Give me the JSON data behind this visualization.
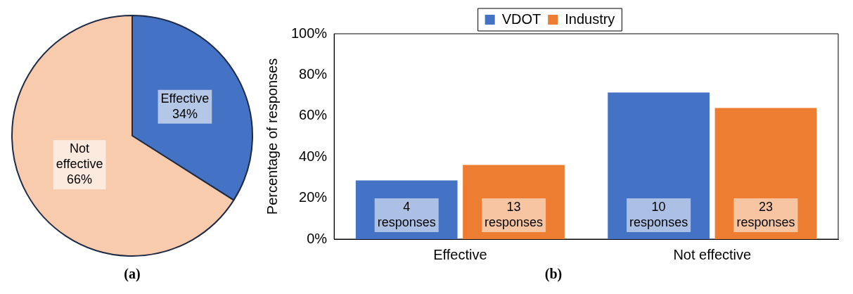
{
  "chart_data": [
    {
      "type": "pie",
      "categories": [
        "Effective",
        "Not effective"
      ],
      "values": [
        34,
        66
      ],
      "colors": [
        "#4472c4",
        "#f8cbad"
      ],
      "value_labels": [
        "34%",
        "66%"
      ],
      "legend": false,
      "annotations": [
        "(a)"
      ]
    },
    {
      "type": "bar",
      "categories": [
        "Effective",
        "Not effective"
      ],
      "ylabel": "Percentage of responses",
      "ylim": [
        0,
        100
      ],
      "yticks": [
        {
          "value": 0,
          "label": "0%"
        },
        {
          "value": 20,
          "label": "20%"
        },
        {
          "value": 40,
          "label": "40%"
        },
        {
          "value": 60,
          "label": "60%"
        },
        {
          "value": 80,
          "label": "80%"
        },
        {
          "value": 100,
          "label": "100%"
        }
      ],
      "grid": false,
      "legend": "top",
      "series": [
        {
          "name": "VDOT",
          "color": "#4472c4",
          "values": [
            28.6,
            71.4
          ]
        },
        {
          "name": "Industry",
          "color": "#ed7d31",
          "values": [
            36.1,
            63.9
          ]
        }
      ],
      "annotations": [
        "4 responses",
        "13 responses",
        "10 responses",
        "23 responses",
        "(b)"
      ]
    }
  ]
}
